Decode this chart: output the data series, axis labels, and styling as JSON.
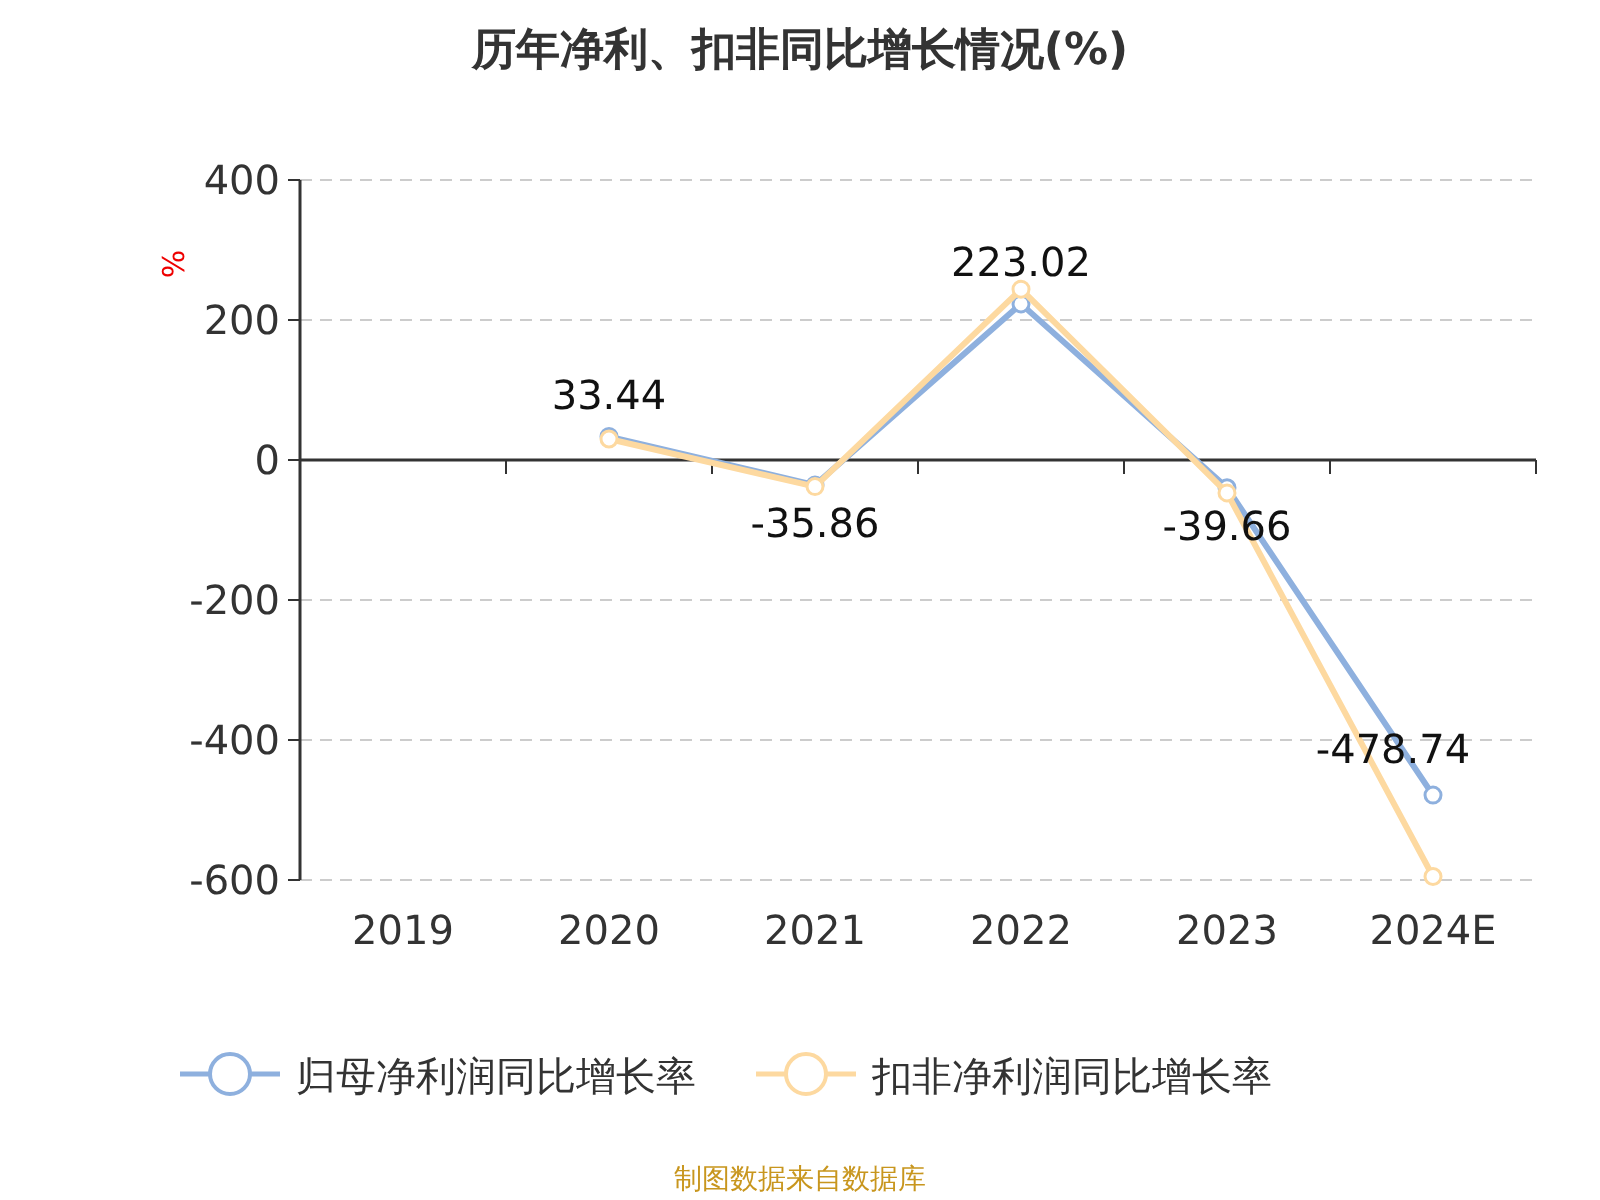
{
  "chart_data": {
    "type": "line",
    "title": "历年净利、扣非同比增长情况(%)",
    "ylabel": "%",
    "categories": [
      "2019",
      "2020",
      "2021",
      "2022",
      "2023",
      "2024E"
    ],
    "series": [
      {
        "name": "归母净利润同比增长率",
        "color": "#8eb0de",
        "values": [
          null,
          33.44,
          -35.86,
          223.02,
          -39.66,
          -478.74
        ],
        "value_labels": [
          null,
          "33.44",
          "-35.86",
          "223.02",
          "-39.66",
          "-478.74"
        ]
      },
      {
        "name": "扣非净利润同比增长率",
        "color": "#fdd9a0",
        "values": [
          null,
          30,
          -38,
          244,
          -47,
          -595
        ]
      }
    ],
    "ylim": [
      -600,
      400
    ],
    "yticks": [
      -600,
      -400,
      -200,
      0,
      200,
      400
    ],
    "grid": "y",
    "legend": "bottom",
    "marker": "circle",
    "annotations": [
      "制图数据来自数据库"
    ]
  }
}
